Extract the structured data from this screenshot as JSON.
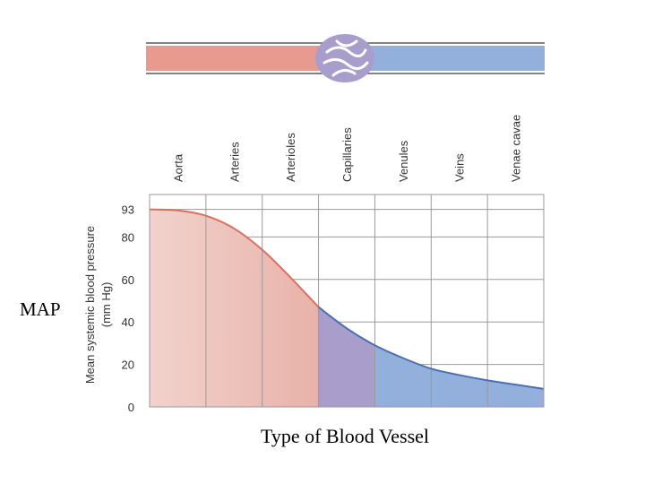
{
  "slide": {
    "side_label": "MAP",
    "bottom_title": "Type of Blood Vessel"
  },
  "colors": {
    "arterial": "#e99a8e",
    "arterial_curve": "#d9705e",
    "capillary": "#a89dcb",
    "venous": "#93b0dc",
    "venous_curve": "#4a6fb5",
    "grid": "#9a9a9a"
  },
  "chart_data": {
    "type": "area",
    "categories": [
      "Aorta",
      "Arteries",
      "Arterioles",
      "Capillaries",
      "Venules",
      "Veins",
      "Venae cavae"
    ],
    "ylabel_line1": "Mean systemic blood pressure",
    "ylabel_line2": "(mm Hg)",
    "yticks": [
      93,
      80,
      60,
      40,
      20,
      0
    ],
    "ylim": [
      0,
      100
    ],
    "grid": true,
    "xlim": [
      0,
      7
    ],
    "series": [
      {
        "segment": "arterial",
        "points": [
          [
            0,
            93
          ],
          [
            0.5,
            92.5
          ],
          [
            1,
            90
          ],
          [
            1.5,
            84
          ],
          [
            2,
            74
          ],
          [
            2.5,
            61
          ],
          [
            3,
            47
          ]
        ]
      },
      {
        "segment": "venous",
        "points": [
          [
            3,
            47
          ],
          [
            3.5,
            37
          ],
          [
            4,
            29
          ],
          [
            4.5,
            23
          ],
          [
            5,
            18
          ],
          [
            5.5,
            15
          ],
          [
            6,
            12.5
          ],
          [
            6.5,
            10.5
          ],
          [
            7,
            8.5
          ]
        ]
      }
    ]
  }
}
